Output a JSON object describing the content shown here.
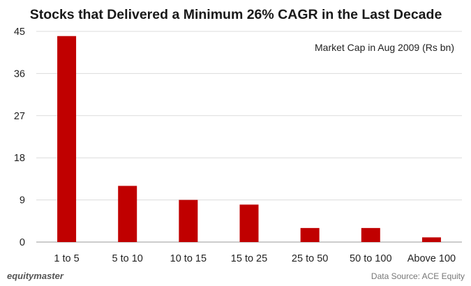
{
  "chart_data": {
    "type": "bar",
    "title": "Stocks that Delivered a Minimum 26% CAGR in the Last Decade",
    "legend_label": "Market Cap in Aug 2009 (Rs bn)",
    "legend_position": "top-right",
    "categories": [
      "1 to 5",
      "5 to 10",
      "10 to 15",
      "15 to 25",
      "25 to 50",
      "50 to 100",
      "Above 100"
    ],
    "values": [
      44,
      12,
      9,
      8,
      3,
      3,
      1
    ],
    "yticks": [
      0,
      9,
      18,
      27,
      36,
      45
    ],
    "ylim": [
      0,
      45
    ],
    "xlabel": "",
    "ylabel": "",
    "grid": true,
    "bar_color": "#c00000"
  },
  "footer": {
    "brand": "equitymaster",
    "source": "Data Source: ACE Equity"
  }
}
